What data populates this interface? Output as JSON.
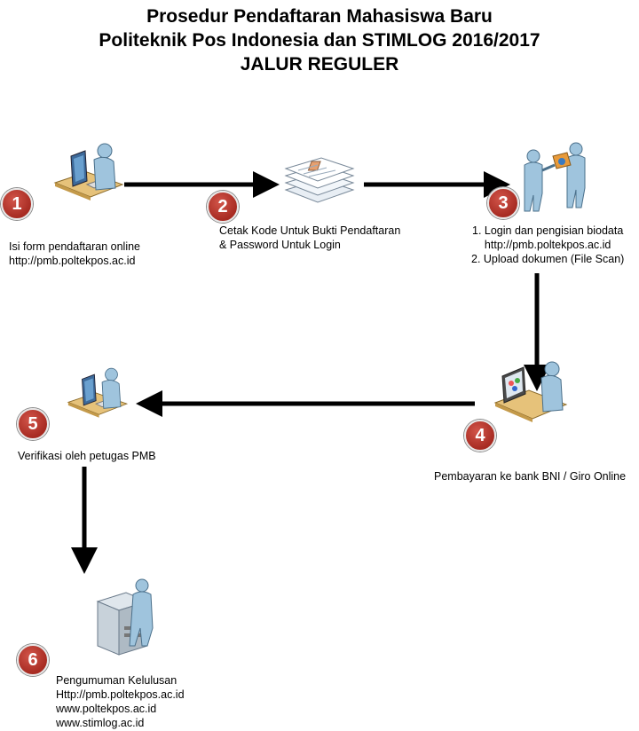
{
  "title": {
    "line1": "Prosedur Pendaftaran Mahasiswa Baru",
    "line2": "Politeknik Pos Indonesia dan STIMLOG 2016/2017",
    "line3": "JALUR REGULER"
  },
  "steps": [
    {
      "number": "1",
      "icon": "desk-computer-user-icon",
      "lines": [
        "Isi form pendaftaran online",
        "http://pmb.poltekpos.ac.id"
      ]
    },
    {
      "number": "2",
      "icon": "documents-stack-icon",
      "lines": [
        "Cetak Kode Untuk Bukti Pendaftaran",
        "& Password Untuk Login"
      ]
    },
    {
      "number": "3",
      "icon": "people-exchange-icon",
      "lines": [
        "1. Login dan pengisian biodata",
        "http://pmb.poltekpos.ac.id",
        "2. Upload dokumen (File Scan)"
      ]
    },
    {
      "number": "4",
      "icon": "desk-monitor-user-icon",
      "lines": [
        "Pembayaran ke bank BNI / Giro Online"
      ]
    },
    {
      "number": "5",
      "icon": "desk-computer-user-icon",
      "lines": [
        "Verifikasi oleh petugas PMB"
      ]
    },
    {
      "number": "6",
      "icon": "printer-user-icon",
      "lines": [
        "Pengumuman Kelulusan",
        "Http://pmb.poltekpos.ac.id",
        "www.poltekpos.ac.id",
        "www.stimlog.ac.id"
      ]
    }
  ],
  "colors": {
    "badge": "#b3322a",
    "arrow": "#000000",
    "person": "#9fc4dd",
    "desk": "#e6c27a"
  }
}
